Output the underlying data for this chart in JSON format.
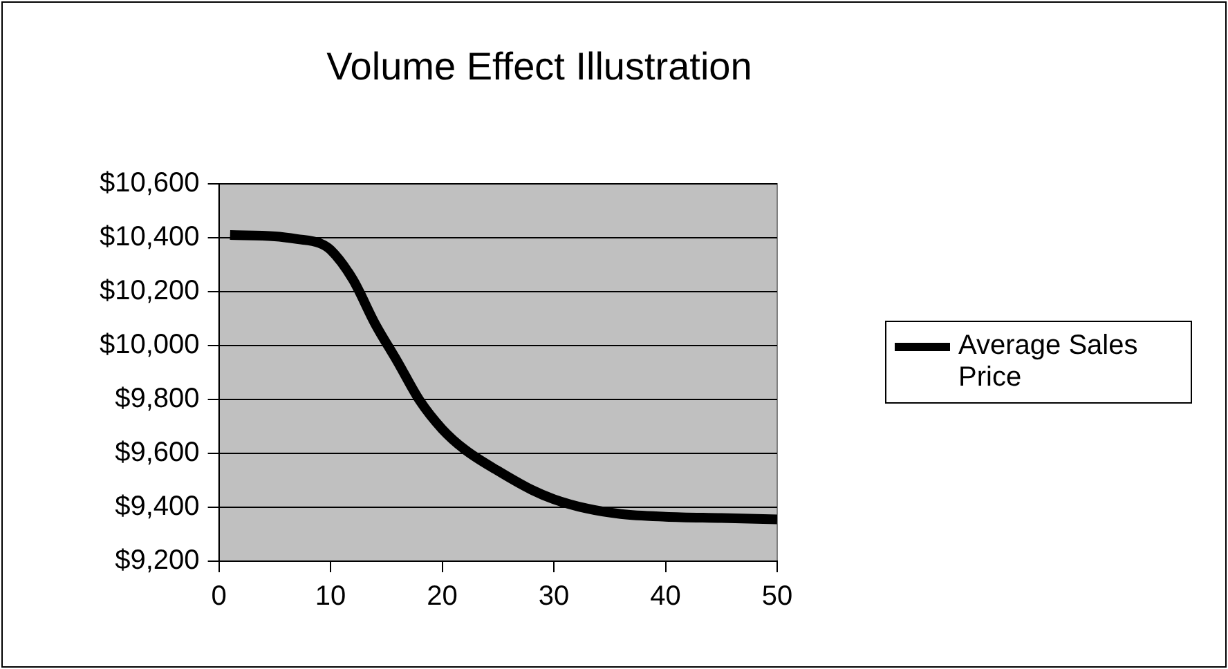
{
  "chart_data": {
    "type": "line",
    "title": "Volume Effect Illustration",
    "x": [
      1,
      5,
      7,
      9,
      10,
      12,
      14,
      16,
      18,
      20,
      22,
      25,
      28,
      30,
      33,
      36,
      40,
      45,
      50
    ],
    "series": [
      {
        "name": "Average Sales Price",
        "color": "#000000",
        "values": [
          10410,
          10405,
          10395,
          10380,
          10355,
          10245,
          10080,
          9940,
          9795,
          9690,
          9615,
          9535,
          9465,
          9430,
          9395,
          9375,
          9365,
          9360,
          9355
        ]
      }
    ],
    "xlim": [
      0,
      50
    ],
    "xticks": [
      0,
      10,
      20,
      30,
      40,
      50
    ],
    "ylim": [
      9200,
      10600
    ],
    "yticks": [
      {
        "value": 9200,
        "label": "$9,200"
      },
      {
        "value": 9400,
        "label": "$9,400"
      },
      {
        "value": 9600,
        "label": "$9,600"
      },
      {
        "value": 9800,
        "label": "$9,800"
      },
      {
        "value": 10000,
        "label": "$10,000"
      },
      {
        "value": 10200,
        "label": "$10,200"
      },
      {
        "value": 10400,
        "label": "$10,400"
      },
      {
        "value": 10600,
        "label": "$10,600"
      }
    ],
    "grid": "y",
    "legend": "right",
    "marker": "none",
    "line_style": "solid"
  }
}
